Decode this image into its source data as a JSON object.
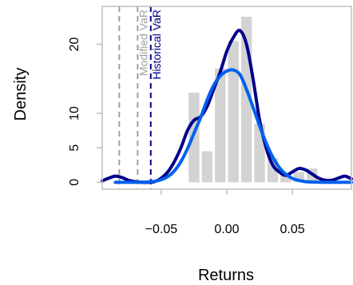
{
  "chart_data": {
    "type": "bar",
    "title": "",
    "xlabel": "Returns",
    "ylabel": "Density",
    "xlim": [
      -0.095,
      0.095
    ],
    "ylim": [
      -1,
      25.5
    ],
    "x_ticks": [
      -0.05,
      0.0,
      0.05
    ],
    "x_tick_labels": [
      "−0.05",
      "0.00",
      "0.05"
    ],
    "y_ticks": [
      0,
      5,
      10,
      20
    ],
    "y_tick_labels": [
      "0",
      "5",
      "10",
      "20"
    ],
    "histogram": {
      "bin_width": 0.01,
      "bins": [
        {
          "x0": -0.03,
          "x1": -0.02,
          "density": 13.0
        },
        {
          "x0": -0.02,
          "x1": -0.01,
          "density": 4.5
        },
        {
          "x0": -0.01,
          "x1": 0.0,
          "density": 16.5
        },
        {
          "x0": 0.0,
          "x1": 0.01,
          "density": 20.5
        },
        {
          "x0": 0.01,
          "x1": 0.02,
          "density": 24.0
        },
        {
          "x0": 0.02,
          "x1": 0.03,
          "density": 8.5
        },
        {
          "x0": 0.03,
          "x1": 0.04,
          "density": 3.5
        },
        {
          "x0": 0.04,
          "x1": 0.05,
          "density": 1.0
        },
        {
          "x0": 0.05,
          "x1": 0.06,
          "density": 1.5
        },
        {
          "x0": 0.06,
          "x1": 0.07,
          "density": 2.0
        }
      ],
      "color": "#d3d3d3"
    },
    "series": [
      {
        "kind": "kernel-density",
        "color": "#00008b",
        "x": [
          -0.095,
          -0.09,
          -0.085,
          -0.08,
          -0.075,
          -0.07,
          -0.065,
          -0.06,
          -0.055,
          -0.05,
          -0.045,
          -0.04,
          -0.035,
          -0.03,
          -0.025,
          -0.02,
          -0.015,
          -0.01,
          -0.005,
          0.0,
          0.005,
          0.01,
          0.015,
          0.02,
          0.025,
          0.03,
          0.035,
          0.04,
          0.045,
          0.05,
          0.055,
          0.06,
          0.065,
          0.07,
          0.075,
          0.08,
          0.085,
          0.09,
          0.095
        ],
        "y": [
          0.2,
          0.6,
          0.9,
          0.7,
          0.3,
          0.1,
          0.0,
          0.0,
          0.1,
          0.6,
          1.5,
          3.0,
          5.0,
          7.5,
          9.0,
          9.5,
          11.0,
          13.5,
          16.0,
          19.0,
          21.0,
          22.0,
          20.0,
          15.0,
          9.0,
          5.0,
          2.5,
          1.5,
          1.0,
          1.5,
          2.0,
          1.8,
          1.2,
          0.6,
          0.3,
          0.3,
          0.6,
          0.9,
          0.5
        ]
      },
      {
        "kind": "normal-density",
        "color": "#0060ee",
        "x": [
          -0.085,
          -0.08,
          -0.075,
          -0.07,
          -0.065,
          -0.06,
          -0.055,
          -0.05,
          -0.045,
          -0.04,
          -0.035,
          -0.03,
          -0.025,
          -0.02,
          -0.015,
          -0.01,
          -0.005,
          0.0,
          0.005,
          0.01,
          0.015,
          0.02,
          0.025,
          0.03,
          0.035,
          0.04,
          0.045,
          0.05,
          0.055,
          0.06,
          0.065,
          0.07,
          0.075,
          0.08,
          0.085,
          0.09,
          0.095
        ],
        "y": [
          0.0,
          0.0,
          0.0,
          0.0,
          0.02,
          0.06,
          0.15,
          0.37,
          0.82,
          1.65,
          3.0,
          4.87,
          7.13,
          9.37,
          11.95,
          14.06,
          15.41,
          16.12,
          16.28,
          15.62,
          13.48,
          10.88,
          8.17,
          5.71,
          3.66,
          2.15,
          1.16,
          0.57,
          0.26,
          0.1,
          0.04,
          0.01,
          0.0,
          0.0,
          0.0,
          0.0,
          0.0
        ]
      }
    ],
    "vertical_lines": [
      {
        "x": -0.082,
        "color": "#a0a0a0",
        "dash": "dashed",
        "label": "",
        "label_color": "#a0a0a0"
      },
      {
        "x": -0.068,
        "color": "#a0a0a0",
        "dash": "dashed",
        "label": "Modified VaR",
        "label_color": "#a0a0a0"
      },
      {
        "x": -0.058,
        "color": "#00008b",
        "dash": "dashed",
        "label": "Historical VaR",
        "label_color": "#00008b"
      }
    ]
  }
}
